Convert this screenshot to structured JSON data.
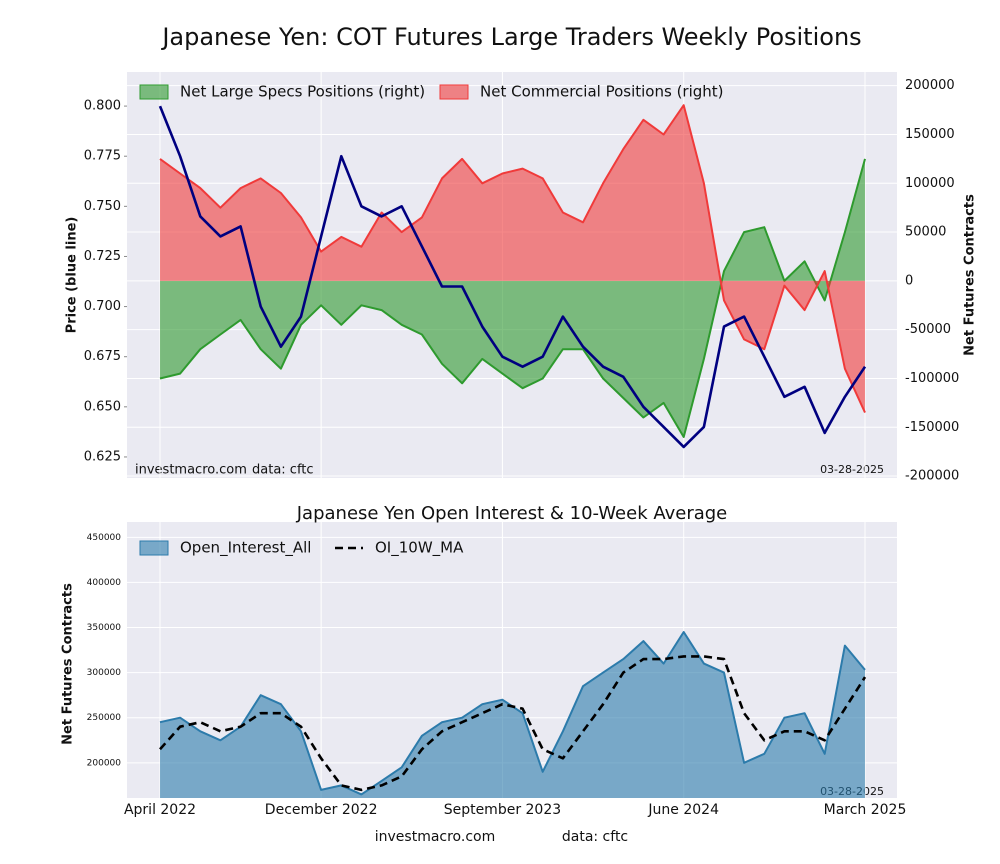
{
  "chart_data": [
    {
      "type": "line",
      "title": "Japanese Yen: COT Futures Large Traders Weekly Positions",
      "ylabel": "Price (blue line)",
      "y2label": "Net Futures Contracts",
      "watermark": "investmacro.com",
      "source": "data: cftc",
      "date": "03-28-2025",
      "grid": true,
      "legend": "upper left",
      "categories": [
        null,
        null,
        null,
        null,
        null,
        null,
        null,
        null,
        null,
        null,
        null,
        null,
        null,
        null,
        null,
        null,
        null,
        null,
        null,
        null,
        null,
        null,
        null,
        null,
        null,
        null,
        null,
        null,
        null,
        null,
        null,
        null,
        null,
        null,
        null,
        null
      ],
      "ylim": [
        0.6145,
        0.817
      ],
      "yticks": [
        {
          "value": 0.625,
          "label": "0.625"
        },
        {
          "value": 0.65,
          "label": "0.650"
        },
        {
          "value": 0.675,
          "label": "0.675"
        },
        {
          "value": 0.7,
          "label": "0.700"
        },
        {
          "value": 0.725,
          "label": "0.725"
        },
        {
          "value": 0.75,
          "label": "0.750"
        },
        {
          "value": 0.775,
          "label": "0.775"
        },
        {
          "value": 0.8,
          "label": "0.800"
        }
      ],
      "y2lim": [
        -202000,
        214000
      ],
      "y2ticks": [
        -200000,
        -150000,
        -100000,
        -50000,
        0,
        50000,
        100000,
        150000,
        200000
      ],
      "series": [
        {
          "name": "Net Large Specs Positions (right)",
          "color": "#2e9a2e",
          "fill": true,
          "axis": "y2",
          "values": [
            -100000,
            -95000,
            -70000,
            -55000,
            -40000,
            -70000,
            -90000,
            -45000,
            -25000,
            -45000,
            -25000,
            -30000,
            -45000,
            -55000,
            -85000,
            -105000,
            -80000,
            -95000,
            -110000,
            -100000,
            -70000,
            -70000,
            -100000,
            -120000,
            -140000,
            -125000,
            -160000,
            -80000,
            10000,
            50000,
            55000,
            0,
            20000,
            -20000,
            50000,
            125000
          ]
        },
        {
          "name": "Net Commercial Positions (right)",
          "color": "#f03a3a",
          "fill": true,
          "axis": "y2",
          "values": [
            125000,
            110000,
            95000,
            75000,
            95000,
            105000,
            90000,
            65000,
            30000,
            45000,
            35000,
            70000,
            50000,
            65000,
            105000,
            125000,
            100000,
            110000,
            115000,
            105000,
            70000,
            60000,
            100000,
            135000,
            165000,
            150000,
            180000,
            100000,
            -20000,
            -60000,
            -70000,
            -5000,
            -30000,
            10000,
            -90000,
            -135000
          ]
        },
        {
          "color": "#000080",
          "fill": false,
          "axis": "y",
          "values": [
            0.8,
            0.775,
            0.745,
            0.735,
            0.74,
            0.7,
            0.68,
            0.695,
            0.735,
            0.775,
            0.75,
            0.745,
            0.75,
            0.73,
            0.71,
            0.71,
            0.69,
            0.675,
            0.67,
            0.675,
            0.695,
            0.68,
            0.67,
            0.665,
            0.65,
            0.64,
            0.63,
            0.64,
            0.69,
            0.695,
            0.675,
            0.655,
            0.66,
            0.637,
            0.655,
            0.67
          ]
        }
      ]
    },
    {
      "type": "line",
      "title": "Japanese Yen Open Interest & 10-Week Average",
      "ylabel": "Net Futures Contracts",
      "date": "03-28-2025",
      "watermark": "investmacro.com",
      "source": "data: cftc",
      "grid": true,
      "legend": "upper left",
      "categories": [
        "April 2022",
        null,
        null,
        null,
        null,
        null,
        null,
        null,
        "December 2022",
        null,
        null,
        null,
        null,
        null,
        null,
        null,
        null,
        "September 2023",
        null,
        null,
        null,
        null,
        null,
        null,
        null,
        null,
        "June 2024",
        null,
        null,
        null,
        null,
        null,
        null,
        null,
        null,
        "March 2025"
      ],
      "ylim": [
        161000,
        467000
      ],
      "yticks": [
        200000,
        250000,
        300000,
        350000,
        400000,
        450000
      ],
      "series": [
        {
          "name": "Open_Interest_All",
          "color": "#2c7bab",
          "fill": true,
          "dash": false,
          "values": [
            245000,
            250000,
            235000,
            225000,
            240000,
            275000,
            265000,
            235000,
            170000,
            175000,
            165000,
            180000,
            195000,
            230000,
            245000,
            250000,
            265000,
            270000,
            255000,
            190000,
            235000,
            285000,
            300000,
            315000,
            335000,
            310000,
            345000,
            310000,
            300000,
            200000,
            210000,
            250000,
            255000,
            210000,
            330000,
            303000
          ]
        },
        {
          "name": "OI_10W_MA",
          "color": "#000000",
          "fill": false,
          "dash": true,
          "values": [
            215000,
            240000,
            245000,
            235000,
            240000,
            255000,
            255000,
            240000,
            205000,
            175000,
            170000,
            175000,
            185000,
            215000,
            235000,
            245000,
            255000,
            265000,
            260000,
            215000,
            205000,
            235000,
            265000,
            300000,
            315000,
            315000,
            318000,
            318000,
            315000,
            255000,
            225000,
            235000,
            235000,
            225000,
            260000,
            295000
          ]
        }
      ]
    }
  ]
}
